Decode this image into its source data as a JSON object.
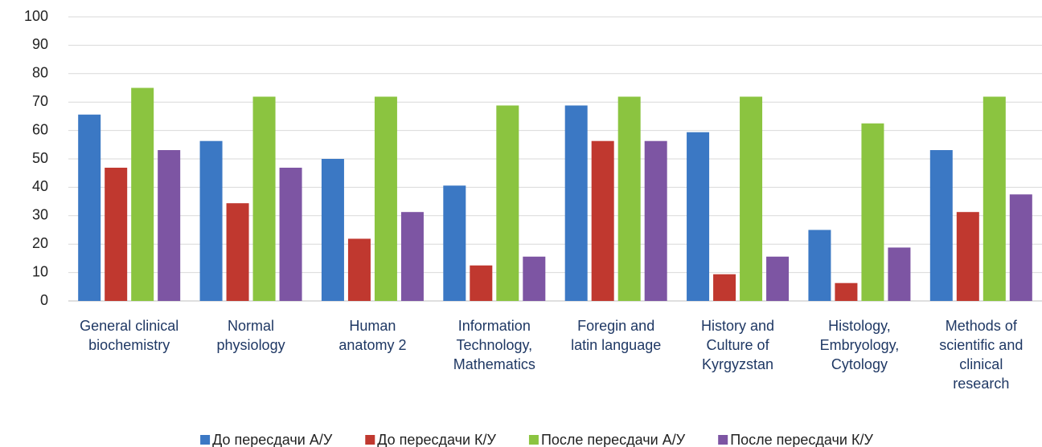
{
  "chart_data": {
    "type": "bar",
    "categories": [
      "General clinical biochemistry",
      "Normal physiology",
      "Human anatomy 2",
      "Information Technology, Mathematics",
      "Foregin and latin language",
      "History and Culture of Kyrgyzstan",
      "Histology, Embryology, Cytology",
      "Methods of scientific and clinical research"
    ],
    "series": [
      {
        "name": "До пересдачи А/У",
        "color": "#3b78c4",
        "values": [
          65.6,
          56.3,
          50,
          40.6,
          68.8,
          59.4,
          25,
          53.1
        ]
      },
      {
        "name": "До пересдачи К/У",
        "color": "#c0382f",
        "values": [
          46.9,
          34.4,
          21.9,
          12.5,
          56.3,
          9.4,
          6.3,
          31.3
        ]
      },
      {
        "name": "После пересдачи А/У",
        "color": "#8bc440",
        "values": [
          75,
          71.9,
          71.9,
          68.8,
          71.9,
          71.9,
          62.5,
          71.9
        ]
      },
      {
        "name": "После пересдачи К/У",
        "color": "#7d55a3",
        "values": [
          53.1,
          46.9,
          31.3,
          15.6,
          56.3,
          15.6,
          18.8,
          37.5
        ]
      }
    ],
    "ylim": [
      0,
      100
    ],
    "yticks": [
      0,
      10,
      20,
      30,
      40,
      50,
      60,
      70,
      80,
      90,
      100
    ],
    "grid": true,
    "legend": "bottom"
  }
}
